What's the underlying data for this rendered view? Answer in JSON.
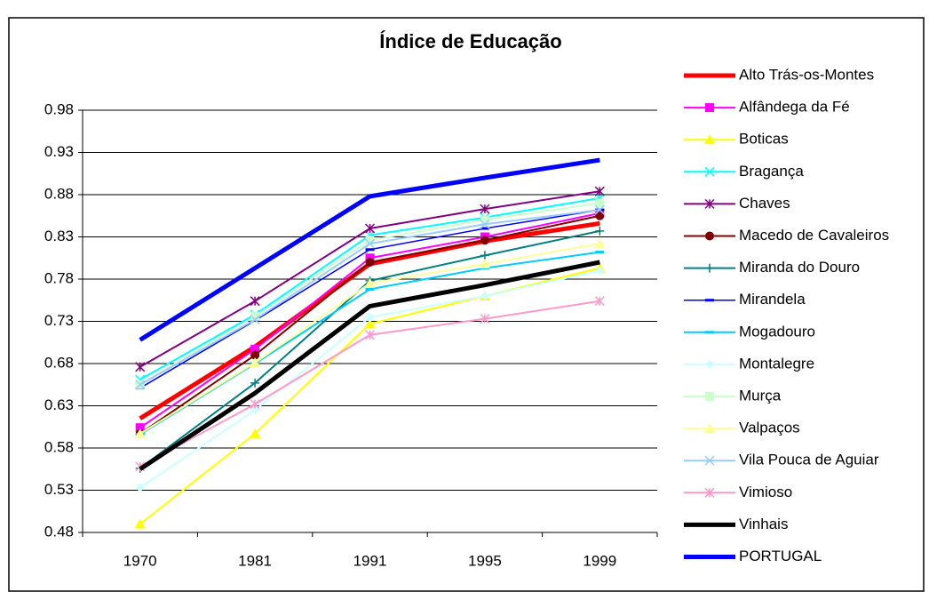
{
  "chart_data": {
    "type": "line",
    "title": "Índice de Educação",
    "categories": [
      "1970",
      "1981",
      "1991",
      "1995",
      "1999"
    ],
    "ylim": [
      0.48,
      0.98
    ],
    "yticks": [
      0.48,
      0.53,
      0.58,
      0.63,
      0.68,
      0.73,
      0.78,
      0.83,
      0.88,
      0.93,
      0.98
    ],
    "grid": true,
    "legend": "right",
    "series": [
      {
        "name": "Alto Trás-os-Montes",
        "color": "#ff0000",
        "width": 5,
        "marker": "none",
        "values": [
          0.615,
          0.7,
          0.798,
          0.825,
          0.846
        ]
      },
      {
        "name": "Alfândega da Fé",
        "color": "#ff00ff",
        "width": 2,
        "marker": "square",
        "values": [
          0.604,
          0.697,
          0.805,
          0.83,
          0.858
        ]
      },
      {
        "name": "Boticas",
        "color": "#ffff00",
        "width": 2,
        "marker": "triangle",
        "values": [
          0.49,
          0.597,
          0.727,
          0.76,
          0.793
        ]
      },
      {
        "name": "Bragança",
        "color": "#00ffff",
        "width": 2,
        "marker": "x",
        "values": [
          0.661,
          0.738,
          0.832,
          0.853,
          0.876
        ]
      },
      {
        "name": "Chaves",
        "color": "#800080",
        "width": 2,
        "marker": "star",
        "values": [
          0.676,
          0.754,
          0.84,
          0.863,
          0.884
        ]
      },
      {
        "name": "Macedo de Cavaleiros",
        "color": "#800000",
        "width": 2,
        "marker": "circle",
        "values": [
          0.597,
          0.69,
          0.8,
          0.826,
          0.855
        ]
      },
      {
        "name": "Miranda do Douro",
        "color": "#008080",
        "width": 2,
        "marker": "plus",
        "values": [
          0.556,
          0.657,
          0.778,
          0.808,
          0.837
        ]
      },
      {
        "name": "Mirandela",
        "color": "#0000ff",
        "width": 1.5,
        "marker": "dash",
        "values": [
          0.651,
          0.731,
          0.815,
          0.84,
          0.862
        ]
      },
      {
        "name": "Mogadouro",
        "color": "#00ccff",
        "width": 2,
        "marker": "dash",
        "values": [
          0.596,
          0.68,
          0.768,
          0.793,
          0.812
        ]
      },
      {
        "name": "Montalegre",
        "color": "#ccffff",
        "width": 2,
        "marker": "diamond",
        "values": [
          0.533,
          0.625,
          0.735,
          0.76,
          0.79
        ]
      },
      {
        "name": "Murça",
        "color": "#ccffcc",
        "width": 2,
        "marker": "square",
        "values": [
          0.655,
          0.736,
          0.826,
          0.85,
          0.87
        ]
      },
      {
        "name": "Valpaços",
        "color": "#ffff99",
        "width": 2,
        "marker": "triangle",
        "values": [
          0.597,
          0.681,
          0.775,
          0.798,
          0.822
        ]
      },
      {
        "name": "Vila Pouca de Aguiar",
        "color": "#99ccff",
        "width": 2,
        "marker": "x",
        "values": [
          0.655,
          0.732,
          0.822,
          0.845,
          0.862
        ]
      },
      {
        "name": "Vimioso",
        "color": "#ff99cc",
        "width": 2,
        "marker": "star",
        "values": [
          0.558,
          0.632,
          0.714,
          0.733,
          0.754
        ]
      },
      {
        "name": "Vinhais",
        "color": "#000000",
        "width": 5,
        "marker": "none",
        "values": [
          0.555,
          0.645,
          0.748,
          0.773,
          0.8
        ]
      },
      {
        "name": "PORTUGAL",
        "color": "#0000ff",
        "width": 5,
        "marker": "none",
        "values": [
          0.708,
          0.793,
          0.878,
          0.9,
          0.921
        ]
      }
    ]
  }
}
